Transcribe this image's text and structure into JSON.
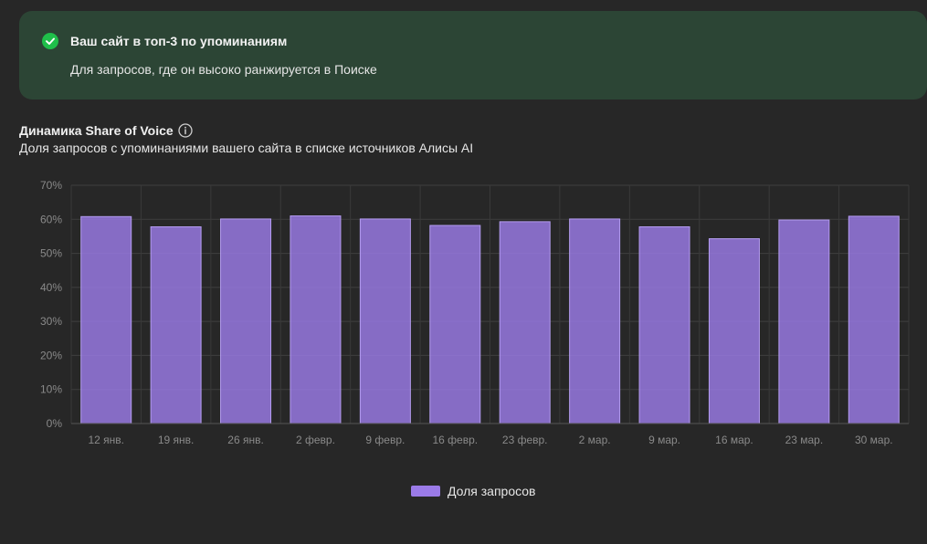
{
  "banner": {
    "title": "Ваш сайт в топ-3 по упоминаниям",
    "text": "Для запросов, где он высоко ранжируется в Поиске",
    "icon": "check-circle-icon",
    "icon_color": "#1fbf4a",
    "background": "#2c4535"
  },
  "chart_header": {
    "title": "Динамика Share of Voice",
    "info_icon": "info-icon",
    "subtitle": "Доля запросов с упоминаниями вашего сайта в списке источников Алисы AI"
  },
  "chart_data": {
    "type": "bar",
    "categories": [
      "12 янв.",
      "19 янв.",
      "26 янв.",
      "2 февр.",
      "9 февр.",
      "16 февр.",
      "23 февр.",
      "2 мар.",
      "9 мар.",
      "16 мар.",
      "23 мар.",
      "30 мар."
    ],
    "series": [
      {
        "name": "Доля запросов",
        "color": "#9b7be8",
        "values": [
          60.8,
          57.8,
          60.1,
          61.0,
          60.1,
          58.2,
          59.3,
          60.1,
          57.8,
          54.3,
          59.8,
          60.9
        ]
      }
    ],
    "yticks": [
      "0%",
      "10%",
      "20%",
      "30%",
      "40%",
      "50%",
      "60%",
      "70%"
    ],
    "ylim": [
      0,
      70
    ],
    "ylabel": "",
    "xlabel": "",
    "grid": true,
    "legend_position": "bottom-center"
  },
  "legend": {
    "label": "Доля запросов"
  }
}
